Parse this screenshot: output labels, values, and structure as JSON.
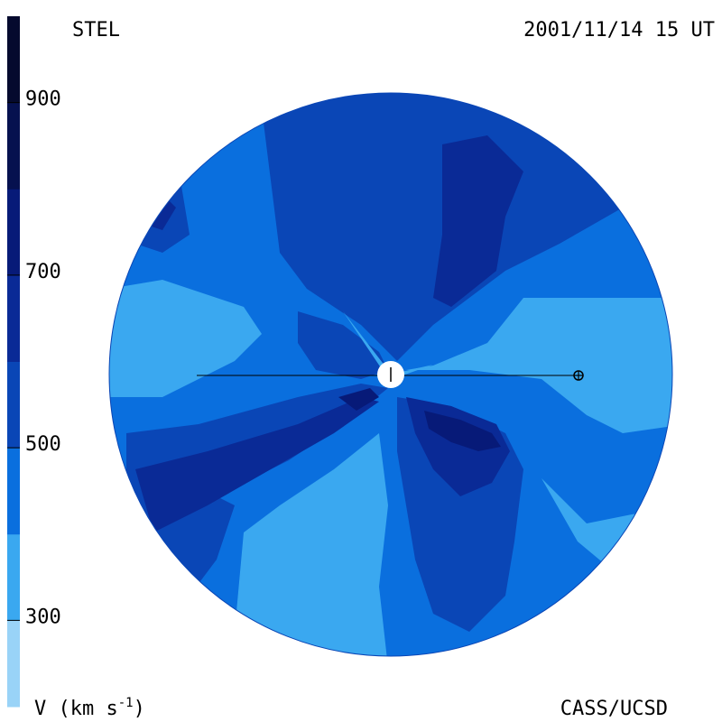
{
  "header": {
    "instrument": "STEL",
    "timestamp": "2001/11/14 15 UT"
  },
  "footer": {
    "quantity": "V (km s",
    "quantity_exp": "-1",
    "quantity_close": ")",
    "credit": "CASS/UCSD"
  },
  "colorbar": {
    "range": [
      200,
      1000
    ],
    "ticks": [
      {
        "value": 900,
        "label": "900"
      },
      {
        "value": 700,
        "label": "700"
      },
      {
        "value": 500,
        "label": "500"
      },
      {
        "value": 300,
        "label": "300"
      }
    ],
    "bands": [
      {
        "from": 200,
        "to": 300,
        "color": "#99d3f7"
      },
      {
        "from": 300,
        "to": 400,
        "color": "#3aa8f0"
      },
      {
        "from": 400,
        "to": 500,
        "color": "#0a6fde"
      },
      {
        "from": 500,
        "to": 600,
        "color": "#0a46b6"
      },
      {
        "from": 600,
        "to": 700,
        "color": "#0a2a96"
      },
      {
        "from": 700,
        "to": 800,
        "color": "#071a78"
      },
      {
        "from": 800,
        "to": 900,
        "color": "#06114f"
      },
      {
        "from": 900,
        "to": 1000,
        "color": "#050a2e"
      }
    ]
  },
  "map": {
    "background_color": "#0a6fde",
    "sun_color": "#ffffff",
    "earth_symbol": "earth-icon",
    "sun_symbol": "sun-icon"
  }
}
